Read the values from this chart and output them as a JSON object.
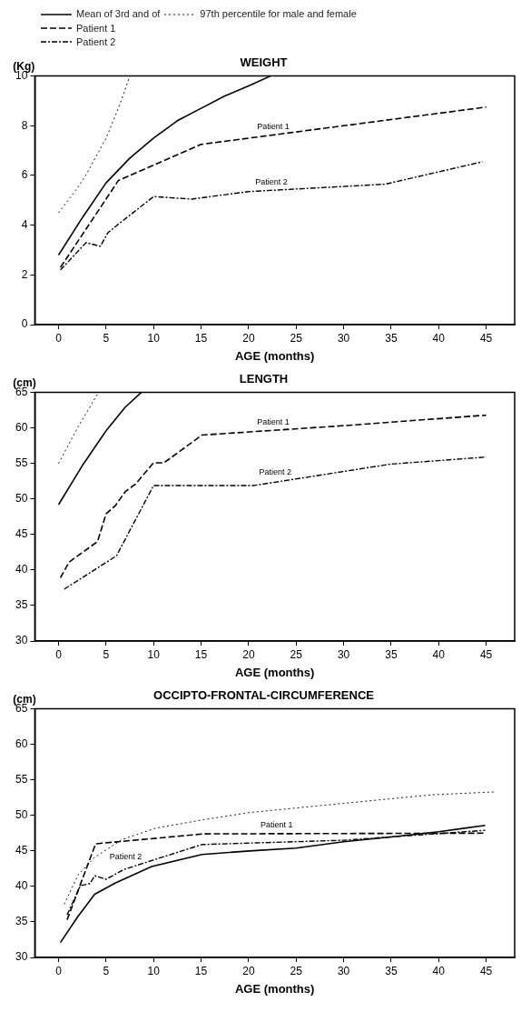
{
  "chart_data": [
    {
      "type": "line",
      "title": "WEIGHT",
      "ylabel": "(Kg)",
      "xlabel": "AGE (months)",
      "legend": "top",
      "marker": "none",
      "grid": false,
      "xlim": [
        -2.5,
        48
      ],
      "xticks": [
        0,
        5,
        10,
        15,
        20,
        25,
        30,
        35,
        40,
        45
      ],
      "ylim": [
        0,
        10
      ],
      "yticks": [
        0,
        2,
        4,
        6,
        8,
        10
      ],
      "series": [
        {
          "name": "Mean of 3rd and of",
          "color": "#000000",
          "line_style": "solid",
          "x": [
            0,
            2.5,
            5,
            7.5,
            10,
            12.5,
            15,
            17.5,
            20,
            22.3
          ],
          "values": [
            2.8,
            4.3,
            5.7,
            6.7,
            7.5,
            8.2,
            8.7,
            9.2,
            9.6,
            10
          ]
        },
        {
          "name": "97th percentile for male and female",
          "color": "#000000",
          "line_style": "dotted",
          "x": [
            0,
            2,
            3,
            5,
            6.5,
            7.5
          ],
          "values": [
            4.5,
            5.5,
            6.1,
            7.5,
            8.9,
            10
          ]
        },
        {
          "name": "Patient 1",
          "color": "#000000",
          "line_style": "dashed",
          "x": [
            0.2,
            6.3,
            15,
            30,
            45
          ],
          "values": [
            2.3,
            5.8,
            7.25,
            8.0,
            8.75
          ]
        },
        {
          "name": "Patient 2",
          "color": "#000000",
          "line_style": "dashdot",
          "x": [
            0.2,
            2.9,
            4.4,
            5.2,
            6.5,
            10,
            14,
            20,
            34.4,
            44.6
          ],
          "values": [
            2.2,
            3.3,
            3.15,
            3.7,
            4.1,
            5.15,
            5.05,
            5.35,
            5.65,
            6.55
          ]
        }
      ]
    },
    {
      "type": "line",
      "title": "LENGTH",
      "ylabel": "(cm)",
      "xlabel": "AGE (months)",
      "marker": "none",
      "grid": false,
      "xlim": [
        -2.5,
        48
      ],
      "xticks": [
        0,
        5,
        10,
        15,
        20,
        25,
        30,
        35,
        40,
        45
      ],
      "ylim": [
        30,
        65
      ],
      "yticks": [
        30,
        35,
        40,
        45,
        50,
        55,
        60,
        65
      ],
      "series": [
        {
          "color": "#000000",
          "line_style": "solid",
          "x": [
            0,
            2.5,
            5,
            7,
            8.7
          ],
          "values": [
            49.2,
            54.7,
            59.6,
            62.9,
            65
          ]
        },
        {
          "color": "#000000",
          "line_style": "dotted",
          "x": [
            0,
            2,
            4.2
          ],
          "values": [
            55,
            60,
            65
          ]
        },
        {
          "name": "Patient 1",
          "color": "#000000",
          "line_style": "dashed",
          "x": [
            0.2,
            1.1,
            4.1,
            5,
            6,
            7,
            8.1,
            10,
            11.1,
            15.1,
            29.8,
            45
          ],
          "values": [
            38.9,
            41.1,
            44,
            47.9,
            49.1,
            51,
            52.1,
            55.1,
            55.1,
            59,
            60.3,
            61.8
          ]
        },
        {
          "name": "Patient 2",
          "color": "#000000",
          "line_style": "dashdot",
          "x": [
            0.6,
            6.1,
            10,
            20.6,
            34.9,
            45
          ],
          "values": [
            37.3,
            42,
            51.9,
            51.9,
            54.9,
            55.9
          ]
        }
      ]
    },
    {
      "type": "line",
      "title": "OCCIPTO-FRONTAL-CIRCUMFERENCE",
      "ylabel": "(cm)",
      "xlabel": "AGE (months)",
      "marker": "none",
      "grid": false,
      "xlim": [
        -2.5,
        48
      ],
      "xticks": [
        0,
        5,
        10,
        15,
        20,
        25,
        30,
        35,
        40,
        45
      ],
      "ylim": [
        30,
        65
      ],
      "yticks": [
        30,
        35,
        40,
        45,
        50,
        55,
        60,
        65
      ],
      "series": [
        {
          "color": "#000000",
          "line_style": "solid",
          "x": [
            0.2,
            2,
            3.8,
            6,
            9.8,
            15.1,
            20.1,
            25,
            30,
            35.2,
            40,
            44.9
          ],
          "values": [
            32.1,
            35.7,
            38.9,
            40.5,
            42.8,
            44.5,
            45,
            45.4,
            46.3,
            47,
            47.7,
            48.6
          ]
        },
        {
          "color": "#000000",
          "line_style": "dotted",
          "x": [
            0.6,
            2.1,
            3.8,
            6.7,
            10.2,
            15.3,
            20.1,
            30,
            39.3,
            45.8
          ],
          "values": [
            37.5,
            41.7,
            44.1,
            46.6,
            48.2,
            49.4,
            50.4,
            51.7,
            52.9,
            53.3
          ]
        },
        {
          "name": "Patient 1",
          "color": "#000000",
          "line_style": "dashed",
          "x": [
            0.9,
            3.9,
            15.3,
            45
          ],
          "values": [
            35.3,
            46,
            47.4,
            47.5
          ]
        },
        {
          "name": "Patient 2",
          "color": "#000000",
          "line_style": "dashdot",
          "x": [
            0.9,
            2.3,
            3.3,
            3.8,
            5,
            6.9,
            15.1,
            30,
            44.9
          ],
          "values": [
            36,
            40.1,
            40.4,
            41.5,
            41,
            42.4,
            45.9,
            46.5,
            47.9
          ]
        }
      ]
    }
  ]
}
